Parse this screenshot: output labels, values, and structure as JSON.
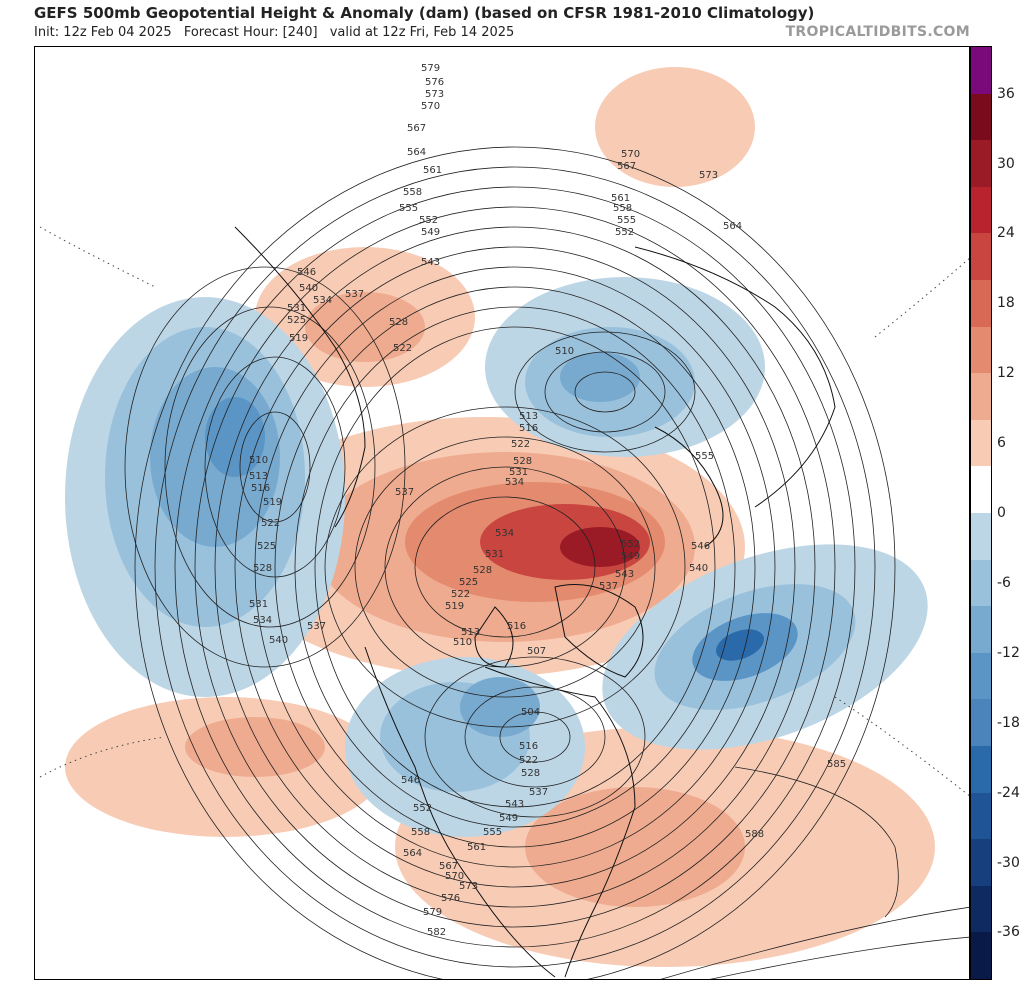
{
  "header": {
    "title": "GEFS 500mb Geopotential Height & Anomaly (dam) (based on CFSR 1981-2010 Climatology)",
    "init": "Init: 12z Feb 04 2025",
    "forecast": "Forecast Hour: [240]",
    "valid": "valid at 12z Fri, Feb 14 2025",
    "brand": "TROPICALTIDBITS.COM"
  },
  "colorbar": {
    "labels": [
      "36",
      "30",
      "24",
      "18",
      "12",
      "6",
      "0",
      "-6",
      "-12",
      "-18",
      "-24",
      "-30",
      "-36"
    ],
    "colors": [
      "#7a0a7a",
      "#7a0b1c",
      "#9a1a26",
      "#b8232d",
      "#c94640",
      "#d86a55",
      "#e48b6f",
      "#efab8f",
      "#f8cbb5",
      "#ffffff",
      "#bcd6e6",
      "#99c1dc",
      "#78aad0",
      "#5b95c5",
      "#4a84bb",
      "#2b6aaa",
      "#1f5497",
      "#173f7d",
      "#0e2a60",
      "#0a1a48"
    ]
  },
  "contour_labels": {
    "north_pacific_arc": [
      "579",
      "576",
      "573",
      "570",
      "567",
      "564",
      "561",
      "558",
      "555",
      "552",
      "549",
      "543"
    ],
    "siberia": [
      "546",
      "540",
      "537",
      "534",
      "531",
      "528",
      "525",
      "522",
      "519"
    ],
    "europe": [
      "570",
      "567",
      "573",
      "561",
      "558",
      "555",
      "552",
      "564"
    ],
    "low_center": [
      "510",
      "513",
      "516"
    ],
    "arctic_core": [
      "522",
      "528",
      "531",
      "534",
      "537",
      "534",
      "531",
      "528",
      "525",
      "522",
      "519",
      "516",
      "513",
      "510",
      "507",
      "504",
      "555",
      "552",
      "549",
      "546",
      "543",
      "540",
      "537"
    ],
    "pacific_low": [
      "510",
      "513",
      "516",
      "519",
      "522",
      "525",
      "528",
      "531",
      "534",
      "540",
      "537"
    ],
    "north_america": [
      "516",
      "522",
      "528",
      "537",
      "543",
      "546",
      "549",
      "552",
      "555",
      "558",
      "561",
      "564",
      "567",
      "570",
      "573",
      "576",
      "579",
      "582"
    ],
    "atlantic": [
      "585",
      "588"
    ]
  }
}
